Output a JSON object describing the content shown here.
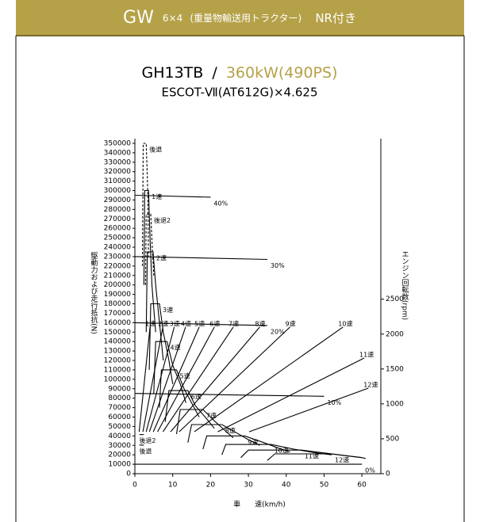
{
  "header": {
    "title": "GW",
    "subtitle": "6×4",
    "note": "(重量物輸送用トラクター)",
    "tag": "NR付き"
  },
  "chart_data": {
    "type": "line",
    "title_parts": [
      "GH13TB",
      "/",
      "360kW(490PS)"
    ],
    "subtitle": "ESCOT-Ⅶ(AT612G)×4.625",
    "xlabel": "車　　速(km/h)",
    "ylabel": "駆動力および走行抵抗(N)",
    "y2label": "エンジン回転数(rpm)",
    "xlim": [
      0,
      65
    ],
    "xticks": [
      0,
      10,
      20,
      30,
      40,
      50,
      60
    ],
    "ylim": [
      0,
      355000
    ],
    "yticks": [
      0,
      10000,
      20000,
      30000,
      40000,
      50000,
      60000,
      70000,
      80000,
      90000,
      100000,
      110000,
      120000,
      130000,
      140000,
      150000,
      160000,
      170000,
      180000,
      190000,
      200000,
      210000,
      220000,
      230000,
      240000,
      250000,
      260000,
      270000,
      280000,
      290000,
      300000,
      310000,
      320000,
      330000,
      340000,
      350000
    ],
    "y2lim": [
      0,
      4800
    ],
    "y2ticks": [
      0,
      500,
      1000,
      1500,
      2000,
      2500
    ],
    "series": [
      {
        "name": "40%",
        "color": "#000000",
        "x": [
          0,
          20
        ],
        "values": [
          295000,
          293000
        ]
      },
      {
        "name": "30%",
        "color": "#000000",
        "x": [
          0,
          35
        ],
        "values": [
          230000,
          227000
        ]
      },
      {
        "name": "20%",
        "color": "#000000",
        "x": [
          0,
          35
        ],
        "values": [
          160000,
          157000
        ]
      },
      {
        "name": "10%",
        "color": "#000000",
        "x": [
          0,
          50
        ],
        "values": [
          85000,
          82000
        ]
      },
      {
        "name": "0%",
        "color": "#000000",
        "x": [
          0,
          60
        ],
        "values": [
          10000,
          10000
        ]
      },
      {
        "name": "後退",
        "color": "#000000",
        "style": "dashed",
        "x": [
          2.0,
          2.2,
          3.0,
          3.4,
          3.6
        ],
        "values": [
          220000,
          350000,
          350000,
          300000,
          230000
        ]
      },
      {
        "name": "後退2",
        "color": "#000000",
        "style": "dashed",
        "x": [
          2.8,
          3.0,
          4.2,
          4.6,
          5.0
        ],
        "values": [
          200000,
          275000,
          275000,
          240000,
          210000
        ]
      },
      {
        "name": "1速",
        "color": "#000000",
        "x": [
          2.4,
          2.6,
          3.6,
          4.0,
          4.5,
          5.5
        ],
        "values": [
          200000,
          300000,
          300000,
          250000,
          200000,
          150000
        ]
      },
      {
        "name": "2速",
        "color": "#000000",
        "x": [
          3.0,
          3.3,
          4.8,
          5.5,
          6.5,
          7.5
        ],
        "values": [
          150000,
          235000,
          235000,
          200000,
          160000,
          120000
        ]
      },
      {
        "name": "3速",
        "color": "#000000",
        "x": [
          3.8,
          4.2,
          6.5,
          7.5,
          9,
          10
        ],
        "values": [
          110000,
          180000,
          180000,
          150000,
          120000,
          95000
        ]
      },
      {
        "name": "4速",
        "color": "#000000",
        "x": [
          5,
          5.5,
          8.5,
          10,
          12,
          13.5
        ],
        "values": [
          85000,
          140000,
          140000,
          115000,
          95000,
          75000
        ]
      },
      {
        "name": "5速",
        "color": "#000000",
        "x": [
          6.5,
          7,
          11,
          13,
          15,
          17
        ],
        "values": [
          70000,
          110000,
          110000,
          90000,
          75000,
          60000
        ]
      },
      {
        "name": "6速",
        "color": "#000000",
        "x": [
          8,
          9,
          14,
          16,
          19,
          21
        ],
        "values": [
          55000,
          88000,
          88000,
          72000,
          58000,
          48000
        ]
      },
      {
        "name": "7速",
        "color": "#000000",
        "x": [
          11,
          12,
          18,
          21,
          24,
          26
        ],
        "values": [
          42000,
          68000,
          68000,
          56000,
          45000,
          38000
        ]
      },
      {
        "name": "8速",
        "color": "#000000",
        "x": [
          14,
          15,
          23,
          27,
          30,
          33
        ],
        "values": [
          33000,
          52000,
          52000,
          43000,
          36000,
          30000
        ]
      },
      {
        "name": "9速",
        "color": "#000000",
        "x": [
          18,
          19,
          29,
          34,
          38,
          41
        ],
        "values": [
          26000,
          40000,
          40000,
          33000,
          27000,
          23000
        ]
      },
      {
        "name": "10速",
        "color": "#000000",
        "x": [
          23,
          24,
          36,
          42,
          48,
          52
        ],
        "values": [
          20000,
          31000,
          31000,
          26000,
          22000,
          20000
        ]
      },
      {
        "name": "11速",
        "color": "#000000",
        "x": [
          28,
          30,
          44,
          50,
          56,
          60
        ],
        "values": [
          17000,
          25000,
          25000,
          22000,
          19000,
          17000
        ]
      },
      {
        "name": "12速",
        "color": "#000000",
        "x": [
          35,
          37,
          52,
          56,
          60,
          61
        ],
        "values": [
          14000,
          21000,
          21000,
          19000,
          17000,
          16000
        ]
      },
      {
        "name": "後退2",
        "color": "#000000",
        "axis": "y2",
        "x": [
          1.2,
          2.4
        ],
        "values": [
          560,
          560
        ]
      },
      {
        "name": "後退",
        "color": "#000000",
        "axis": "y2",
        "x": [
          1.2,
          2.4
        ],
        "values": [
          410,
          410
        ]
      },
      {
        "name": "1速",
        "color": "#000000",
        "axis": "y2",
        "x": [
          1.14,
          4
        ],
        "values": [
          600,
          2100
        ]
      },
      {
        "name": "2速",
        "color": "#000000",
        "axis": "y2",
        "x": [
          2.11,
          7.4
        ],
        "values": [
          600,
          2100
        ]
      },
      {
        "name": "3速",
        "color": "#000000",
        "axis": "y2",
        "x": [
          2.97,
          10.4
        ],
        "values": [
          600,
          2100
        ]
      },
      {
        "name": "4速",
        "color": "#000000",
        "axis": "y2",
        "x": [
          3.83,
          13.4
        ],
        "values": [
          600,
          2100
        ]
      },
      {
        "name": "5速",
        "color": "#000000",
        "axis": "y2",
        "x": [
          4.86,
          17
        ],
        "values": [
          600,
          2100
        ]
      },
      {
        "name": "6速",
        "color": "#000000",
        "axis": "y2",
        "x": [
          6,
          21
        ],
        "values": [
          600,
          2100
        ]
      },
      {
        "name": "7速",
        "color": "#000000",
        "axis": "y2",
        "x": [
          7.43,
          26
        ],
        "values": [
          600,
          2100
        ]
      },
      {
        "name": "8速",
        "color": "#000000",
        "axis": "y2",
        "x": [
          9.43,
          33
        ],
        "values": [
          600,
          2100
        ]
      },
      {
        "name": "9速",
        "color": "#000000",
        "axis": "y2",
        "x": [
          11.71,
          41
        ],
        "values": [
          600,
          2100
        ]
      },
      {
        "name": "10速",
        "color": "#000000",
        "axis": "y2",
        "x": [
          15.71,
          55
        ],
        "values": [
          600,
          2100
        ]
      },
      {
        "name": "11速",
        "color": "#000000",
        "axis": "y2",
        "x": [
          21.9,
          60.6
        ],
        "values": [
          600,
          1657
        ]
      },
      {
        "name": "12速",
        "color": "#000000",
        "axis": "y2",
        "x": [
          30.2,
          61.7
        ],
        "values": [
          600,
          1225
        ]
      }
    ]
  }
}
